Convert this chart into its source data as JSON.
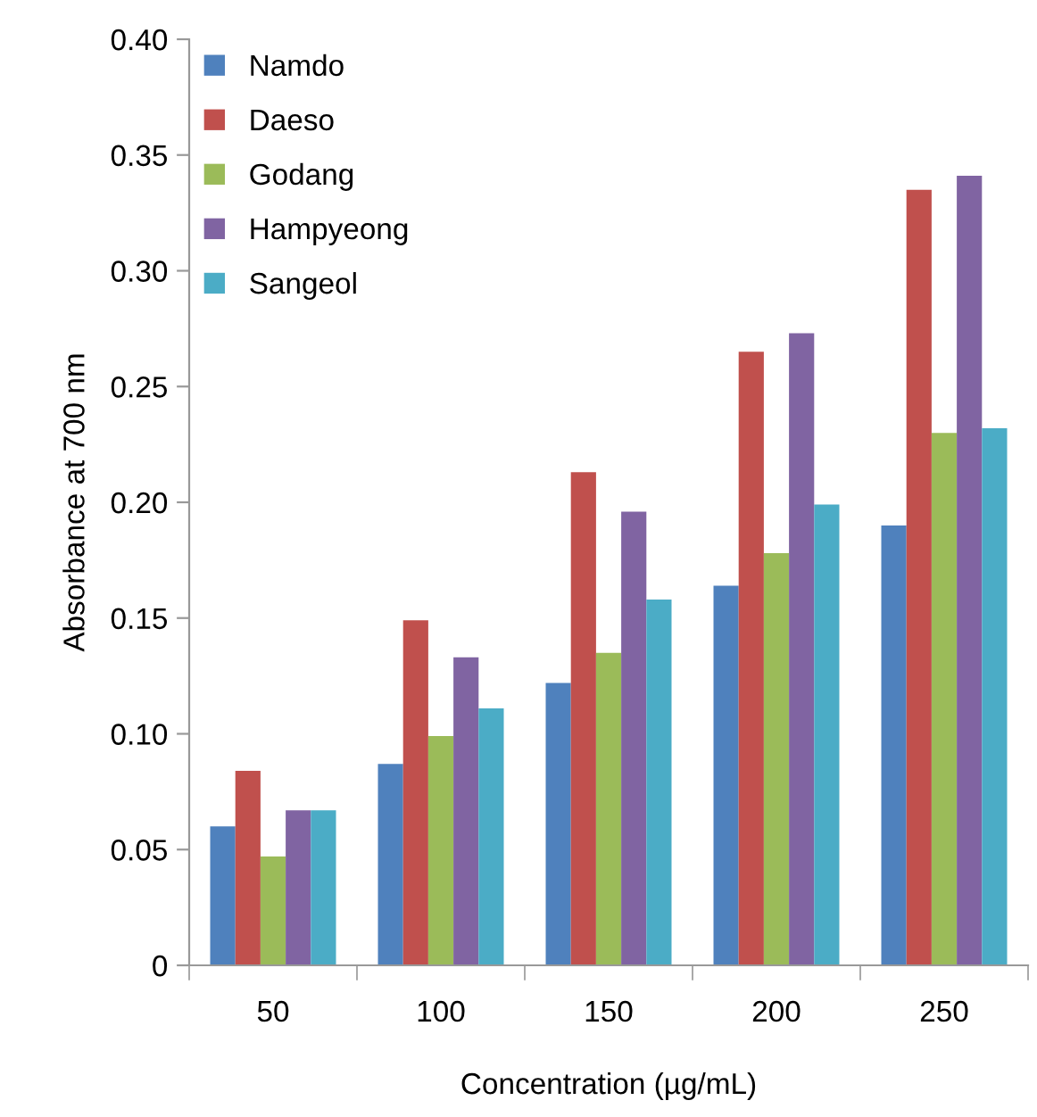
{
  "chart_data": {
    "type": "bar",
    "xlabel": "Concentration (µg/mL)",
    "ylabel": "Absorbance at 700 nm",
    "categories": [
      "50",
      "100",
      "150",
      "200",
      "250"
    ],
    "series": [
      {
        "name": "Namdo",
        "color": "#4f81bd",
        "values": [
          0.06,
          0.087,
          0.122,
          0.164,
          0.19
        ]
      },
      {
        "name": "Daeso",
        "color": "#c0504d",
        "values": [
          0.084,
          0.149,
          0.213,
          0.265,
          0.335
        ]
      },
      {
        "name": "Godang",
        "color": "#9bbb59",
        "values": [
          0.047,
          0.099,
          0.135,
          0.178,
          0.23
        ]
      },
      {
        "name": "Hampyeong",
        "color": "#8064a2",
        "values": [
          0.067,
          0.133,
          0.196,
          0.273,
          0.341
        ]
      },
      {
        "name": "Sangeol",
        "color": "#4bacc6",
        "values": [
          0.067,
          0.111,
          0.158,
          0.199,
          0.232
        ]
      }
    ],
    "ylim": [
      0,
      0.4
    ],
    "yticks": [
      {
        "value": 0,
        "label": "0"
      },
      {
        "value": 0.05,
        "label": "0.05"
      },
      {
        "value": 0.1,
        "label": "0.10"
      },
      {
        "value": 0.15,
        "label": "0.15"
      },
      {
        "value": 0.2,
        "label": "0.20"
      },
      {
        "value": 0.25,
        "label": "0.25"
      },
      {
        "value": 0.3,
        "label": "0.30"
      },
      {
        "value": 0.35,
        "label": "0.35"
      },
      {
        "value": 0.4,
        "label": "0.40"
      }
    ],
    "grid": false,
    "legend": "top left"
  }
}
